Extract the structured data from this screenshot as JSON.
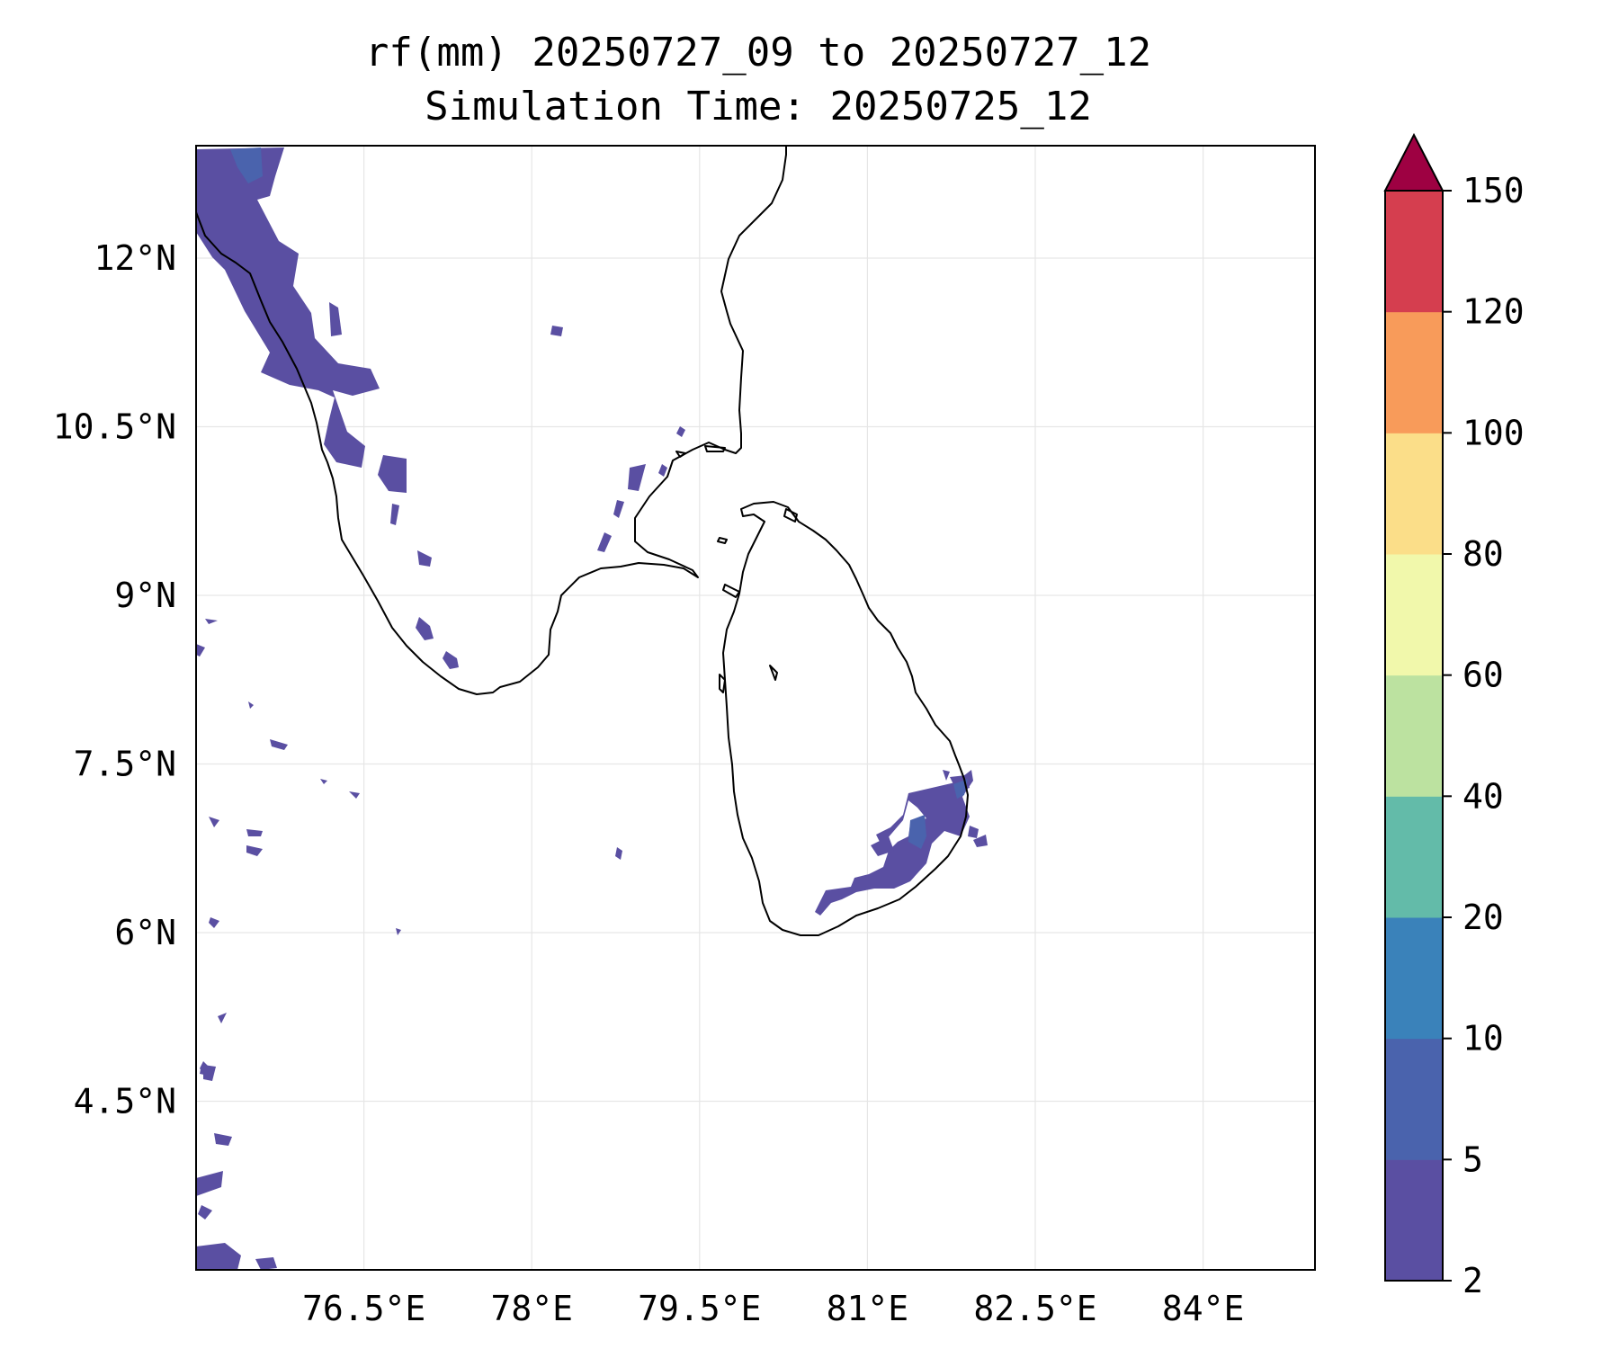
{
  "title": {
    "line1": "rf(mm) 20250727_09 to 20250727_12",
    "line2": "Simulation Time: 20250725_12"
  },
  "map": {
    "projection": "PlateCarree",
    "lon_range": [
      75.0,
      85.0
    ],
    "lat_range": [
      3.0,
      13.0
    ],
    "gridlines": true,
    "coastlines": true,
    "lon_ticks": [
      76.5,
      78,
      79.5,
      81,
      82.5,
      84
    ],
    "lon_tick_labels": [
      "76.5°E",
      "78°E",
      "79.5°E",
      "81°E",
      "82.5°E",
      "84°E"
    ],
    "lat_ticks": [
      12,
      10.5,
      9,
      7.5,
      6,
      4.5
    ],
    "lat_tick_labels": [
      "12°N",
      "10.5°N",
      "9°N",
      "7.5°N",
      "6°N",
      "4.5°N"
    ]
  },
  "colorbar": {
    "levels": [
      2,
      5,
      10,
      20,
      40,
      60,
      80,
      100,
      120,
      150
    ],
    "tick_labels": [
      "2",
      "5",
      "10",
      "20",
      "40",
      "60",
      "80",
      "100",
      "120",
      "150"
    ],
    "colors": [
      "#5a4fa2",
      "#4a63ad",
      "#3a82ba",
      "#63bba9",
      "#bce2a0",
      "#f1f8ab",
      "#fbde89",
      "#f89b5a",
      "#d53e4f"
    ],
    "extend_color": "#9e0142",
    "extend": "max"
  },
  "chart_data": {
    "type": "contour-map",
    "variable": "rf(mm)",
    "visible_bands": [
      {
        "band": "2-5",
        "regions": [
          "west coast of India (Kerala/Karnataka)",
          "south-east Sri Lanka",
          "scattered open-ocean cells west of 76°E"
        ]
      },
      {
        "band": "5-10",
        "regions": [
          "near 12.5°N 75.5°E",
          "east coast of Sri Lanka near 7.3°N 81.8°E"
        ]
      }
    ]
  }
}
